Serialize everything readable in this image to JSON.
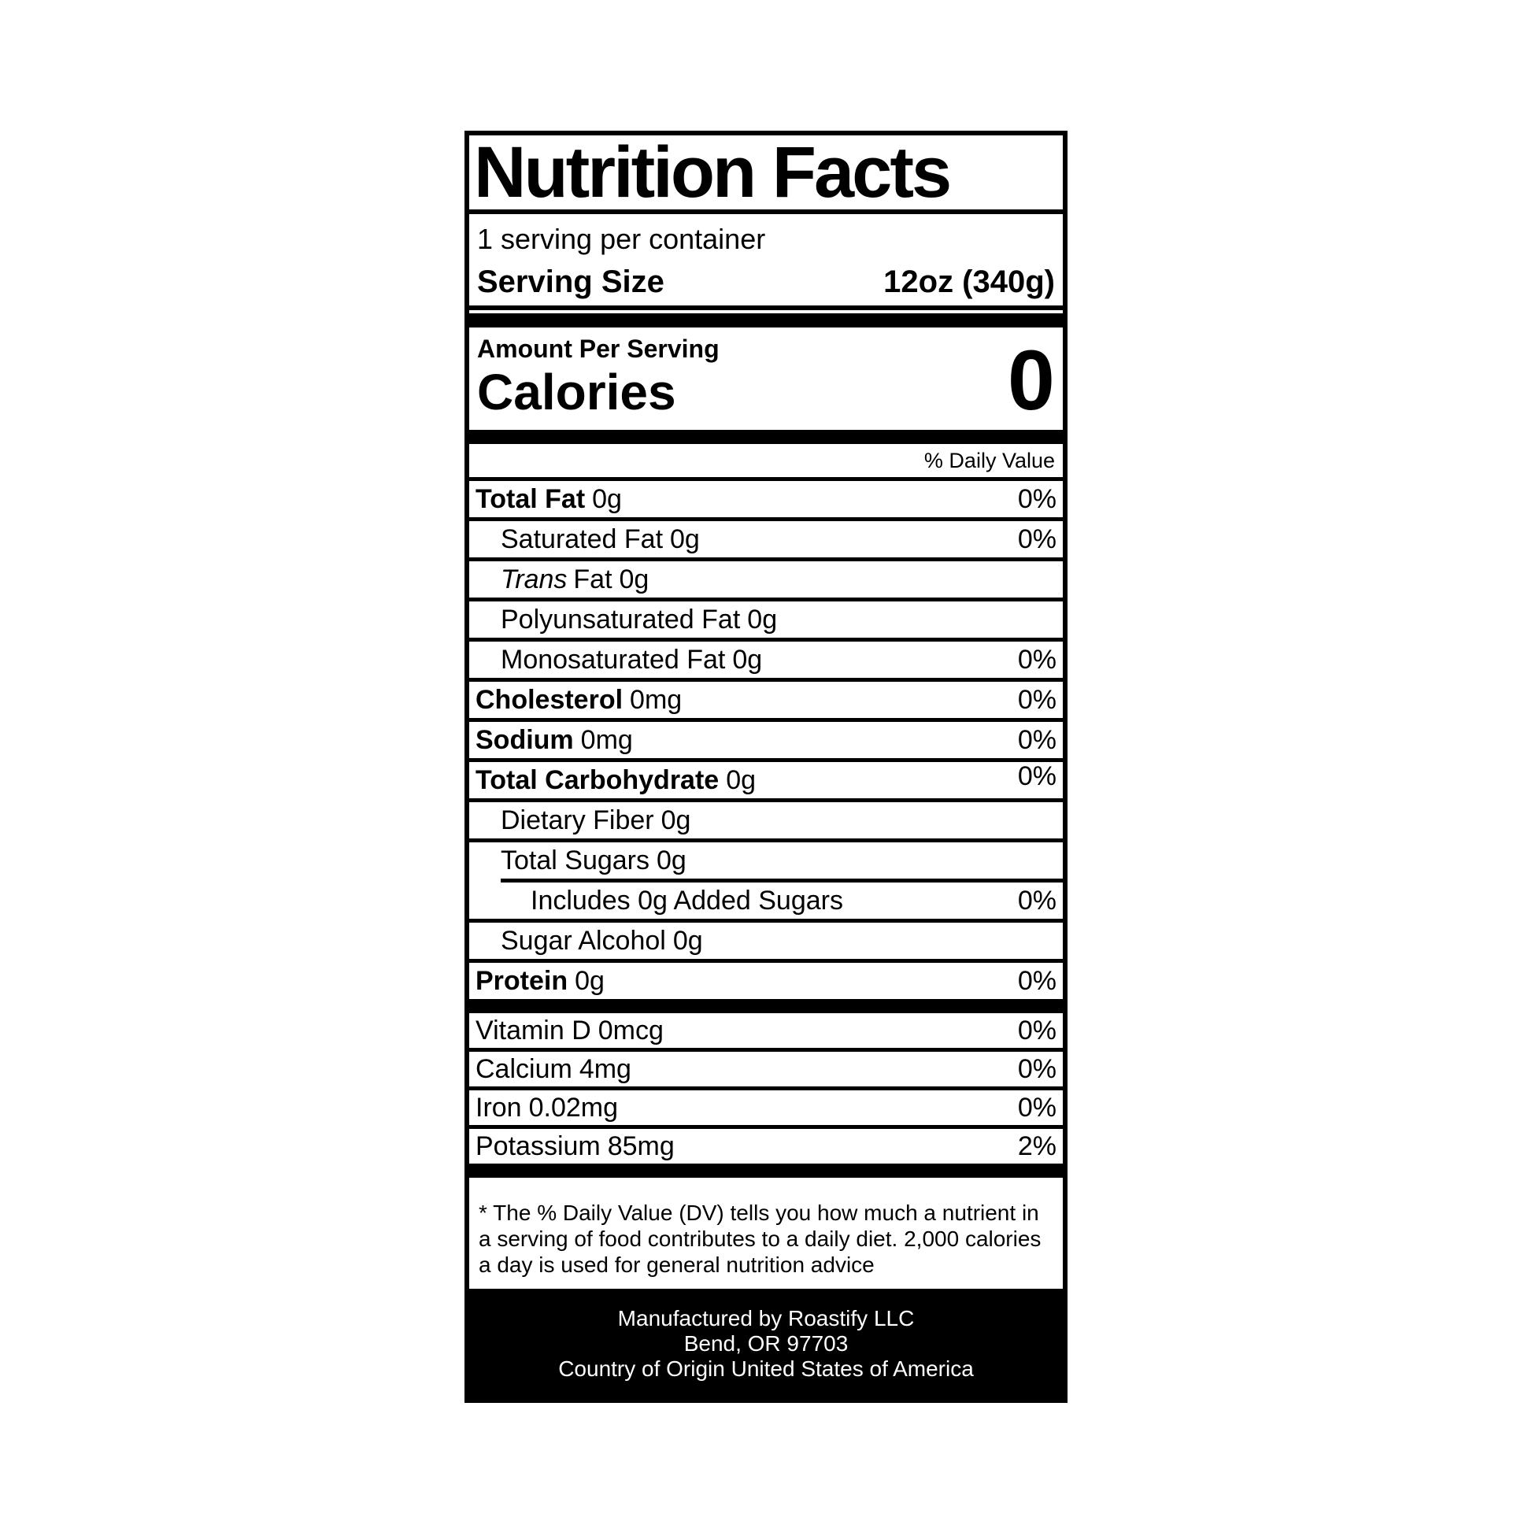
{
  "label": {
    "title": "Nutrition Facts",
    "servings_per_container": "1 serving per container",
    "serving_size_label": "Serving Size",
    "serving_size_value": "12oz (340g)",
    "amount_per_serving": "Amount Per Serving",
    "calories_label": "Calories",
    "calories_value": "0",
    "daily_value_header": "% Daily Value",
    "nutrients": [
      {
        "name": "Total Fat",
        "amount": "0g",
        "pct": "0%"
      },
      {
        "name": "Saturated Fat",
        "amount": "0g",
        "pct": "0%"
      },
      {
        "italic": "Trans",
        "name": "Fat",
        "amount": "0g",
        "pct": ""
      },
      {
        "name": "Polyunsaturated Fat",
        "amount": "0g",
        "pct": ""
      },
      {
        "name": "Monosaturated Fat",
        "amount": "0g",
        "pct": "0%"
      },
      {
        "name": "Cholesterol",
        "amount": "0mg",
        "pct": "0%"
      },
      {
        "name": "Sodium",
        "amount": "0mg",
        "pct": "0%"
      },
      {
        "name": "Total Carbohydrate",
        "amount": "0g",
        "pct": "0%"
      },
      {
        "name": "Dietary Fiber",
        "amount": "0g",
        "pct": ""
      },
      {
        "name": "Total Sugars",
        "amount": "0g",
        "pct": ""
      },
      {
        "name": "Includes 0g Added Sugars",
        "amount": "",
        "pct": "0%"
      },
      {
        "name": "Sugar Alcohol",
        "amount": "0g",
        "pct": ""
      },
      {
        "name": "Protein",
        "amount": "0g",
        "pct": "0%"
      }
    ],
    "vitamins": [
      {
        "name": "Vitamin D",
        "amount": "0mcg",
        "pct": "0%"
      },
      {
        "name": "Calcium",
        "amount": "4mg",
        "pct": "0%"
      },
      {
        "name": "Iron",
        "amount": "0.02mg",
        "pct": "0%"
      },
      {
        "name": "Potassium",
        "amount": "85mg",
        "pct": "2%"
      }
    ],
    "footnote": "* The % Daily Value (DV) tells you how much a nutrient in a serving of food contributes to a daily diet. 2,000 calories a day is used for general nutrition advice",
    "footer": [
      "Manufactured by Roastify LLC",
      "Bend, OR 97703",
      "Country of Origin United States of America"
    ],
    "colors": {
      "text": "#000000",
      "background": "#ffffff",
      "footer_background": "#000000",
      "footer_text": "#ffffff"
    }
  }
}
